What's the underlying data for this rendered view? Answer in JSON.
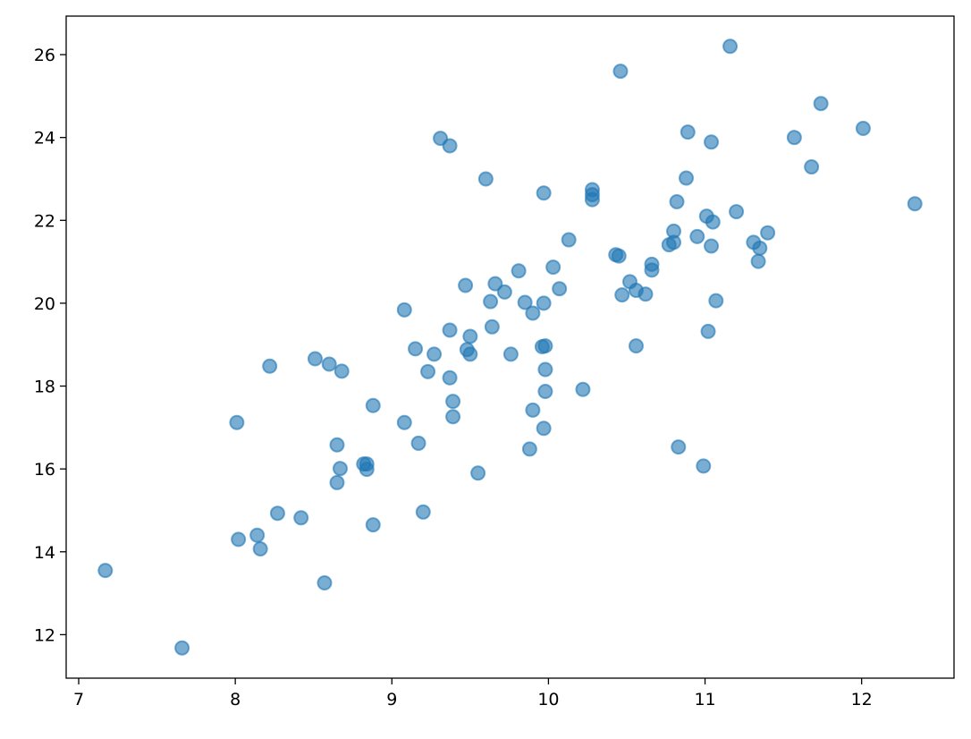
{
  "chart_data": {
    "type": "scatter",
    "title": "",
    "xlabel": "",
    "ylabel": "",
    "xlim": [
      6.92,
      12.59
    ],
    "ylim": [
      10.95,
      26.93
    ],
    "x_ticks": [
      7,
      8,
      9,
      10,
      11,
      12
    ],
    "x_tick_labels": [
      "7",
      "8",
      "9",
      "10",
      "11",
      "12"
    ],
    "y_ticks": [
      12,
      14,
      16,
      18,
      20,
      22,
      24,
      26
    ],
    "y_tick_labels": [
      "12",
      "14",
      "16",
      "18",
      "20",
      "22",
      "24",
      "26"
    ],
    "grid": false,
    "legend": "none",
    "marker_color": "#1f77b4",
    "marker_alpha": 0.6,
    "points": [
      [
        7.17,
        13.55
      ],
      [
        7.66,
        11.68
      ],
      [
        8.01,
        17.12
      ],
      [
        8.02,
        14.3
      ],
      [
        8.14,
        14.4
      ],
      [
        8.16,
        14.07
      ],
      [
        8.22,
        18.48
      ],
      [
        8.27,
        14.93
      ],
      [
        8.42,
        14.82
      ],
      [
        8.51,
        18.66
      ],
      [
        8.57,
        13.25
      ],
      [
        8.6,
        18.53
      ],
      [
        8.65,
        16.58
      ],
      [
        8.65,
        15.67
      ],
      [
        8.67,
        16.01
      ],
      [
        8.68,
        18.36
      ],
      [
        8.82,
        16.12
      ],
      [
        8.84,
        16.12
      ],
      [
        8.84,
        15.99
      ],
      [
        8.88,
        17.53
      ],
      [
        8.88,
        14.65
      ],
      [
        9.08,
        19.84
      ],
      [
        9.08,
        17.12
      ],
      [
        9.15,
        18.9
      ],
      [
        9.17,
        16.62
      ],
      [
        9.2,
        14.96
      ],
      [
        9.23,
        18.35
      ],
      [
        9.27,
        18.77
      ],
      [
        9.31,
        23.98
      ],
      [
        9.37,
        23.8
      ],
      [
        9.37,
        19.35
      ],
      [
        9.37,
        18.2
      ],
      [
        9.39,
        17.63
      ],
      [
        9.39,
        17.26
      ],
      [
        9.47,
        20.43
      ],
      [
        9.48,
        18.88
      ],
      [
        9.5,
        19.2
      ],
      [
        9.5,
        18.77
      ],
      [
        9.55,
        15.9
      ],
      [
        9.6,
        23.0
      ],
      [
        9.63,
        20.04
      ],
      [
        9.64,
        19.43
      ],
      [
        9.66,
        20.47
      ],
      [
        9.72,
        20.27
      ],
      [
        9.76,
        18.77
      ],
      [
        9.81,
        20.78
      ],
      [
        9.85,
        20.02
      ],
      [
        9.88,
        16.48
      ],
      [
        9.9,
        19.76
      ],
      [
        9.9,
        17.42
      ],
      [
        9.96,
        18.95
      ],
      [
        9.97,
        20.0
      ],
      [
        9.97,
        22.66
      ],
      [
        9.97,
        16.98
      ],
      [
        9.98,
        18.4
      ],
      [
        9.98,
        18.97
      ],
      [
        9.98,
        17.87
      ],
      [
        10.03,
        20.87
      ],
      [
        10.07,
        20.35
      ],
      [
        10.13,
        21.53
      ],
      [
        10.22,
        17.92
      ],
      [
        10.28,
        22.74
      ],
      [
        10.28,
        22.62
      ],
      [
        10.28,
        22.5
      ],
      [
        10.43,
        21.17
      ],
      [
        10.45,
        21.14
      ],
      [
        10.46,
        25.6
      ],
      [
        10.47,
        20.2
      ],
      [
        10.52,
        20.52
      ],
      [
        10.56,
        20.31
      ],
      [
        10.56,
        18.97
      ],
      [
        10.62,
        20.22
      ],
      [
        10.66,
        20.94
      ],
      [
        10.66,
        20.8
      ],
      [
        10.77,
        21.41
      ],
      [
        10.8,
        21.74
      ],
      [
        10.8,
        21.47
      ],
      [
        10.82,
        22.45
      ],
      [
        10.83,
        16.53
      ],
      [
        10.88,
        23.02
      ],
      [
        10.89,
        24.13
      ],
      [
        10.95,
        21.61
      ],
      [
        10.99,
        16.07
      ],
      [
        11.01,
        22.1
      ],
      [
        11.02,
        19.32
      ],
      [
        11.04,
        23.89
      ],
      [
        11.04,
        21.38
      ],
      [
        11.05,
        21.96
      ],
      [
        11.07,
        20.06
      ],
      [
        11.16,
        26.2
      ],
      [
        11.2,
        22.21
      ],
      [
        11.31,
        21.47
      ],
      [
        11.34,
        21.01
      ],
      [
        11.35,
        21.33
      ],
      [
        11.4,
        21.7
      ],
      [
        11.57,
        24.0
      ],
      [
        11.68,
        23.29
      ],
      [
        11.74,
        24.82
      ],
      [
        12.01,
        24.22
      ],
      [
        12.34,
        22.4
      ]
    ]
  }
}
